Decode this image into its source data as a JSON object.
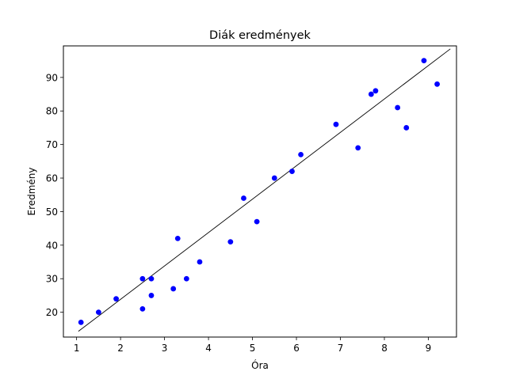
{
  "chart_data": {
    "type": "scatter",
    "title": "Diák eredmények",
    "xlabel": "Óra",
    "ylabel": "Eredmény",
    "xlim": [
      0.7,
      9.64
    ],
    "ylim": [
      12.6,
      99.4
    ],
    "xticks": [
      1,
      2,
      3,
      4,
      5,
      6,
      7,
      8,
      9
    ],
    "yticks": [
      20,
      30,
      40,
      50,
      60,
      70,
      80,
      90
    ],
    "grid": false,
    "legend": "none",
    "series": [
      {
        "marker_color": "#0000ff",
        "points": [
          {
            "x": 1.1,
            "y": 17
          },
          {
            "x": 1.5,
            "y": 20
          },
          {
            "x": 1.9,
            "y": 24
          },
          {
            "x": 2.5,
            "y": 30
          },
          {
            "x": 2.5,
            "y": 21
          },
          {
            "x": 2.7,
            "y": 30
          },
          {
            "x": 2.7,
            "y": 25
          },
          {
            "x": 3.2,
            "y": 27
          },
          {
            "x": 3.3,
            "y": 42
          },
          {
            "x": 3.5,
            "y": 30
          },
          {
            "x": 3.8,
            "y": 35
          },
          {
            "x": 4.5,
            "y": 41
          },
          {
            "x": 4.8,
            "y": 54
          },
          {
            "x": 5.1,
            "y": 47
          },
          {
            "x": 5.5,
            "y": 60
          },
          {
            "x": 5.9,
            "y": 62
          },
          {
            "x": 6.1,
            "y": 67
          },
          {
            "x": 6.9,
            "y": 76
          },
          {
            "x": 7.4,
            "y": 69
          },
          {
            "x": 7.7,
            "y": 85
          },
          {
            "x": 7.8,
            "y": 86
          },
          {
            "x": 8.3,
            "y": 81
          },
          {
            "x": 8.5,
            "y": 75
          },
          {
            "x": 8.9,
            "y": 95
          },
          {
            "x": 9.2,
            "y": 88
          }
        ]
      }
    ],
    "regression_line": {
      "color": "#000000",
      "x": [
        1.04,
        9.5
      ],
      "y": [
        14.3,
        98.5
      ]
    }
  }
}
